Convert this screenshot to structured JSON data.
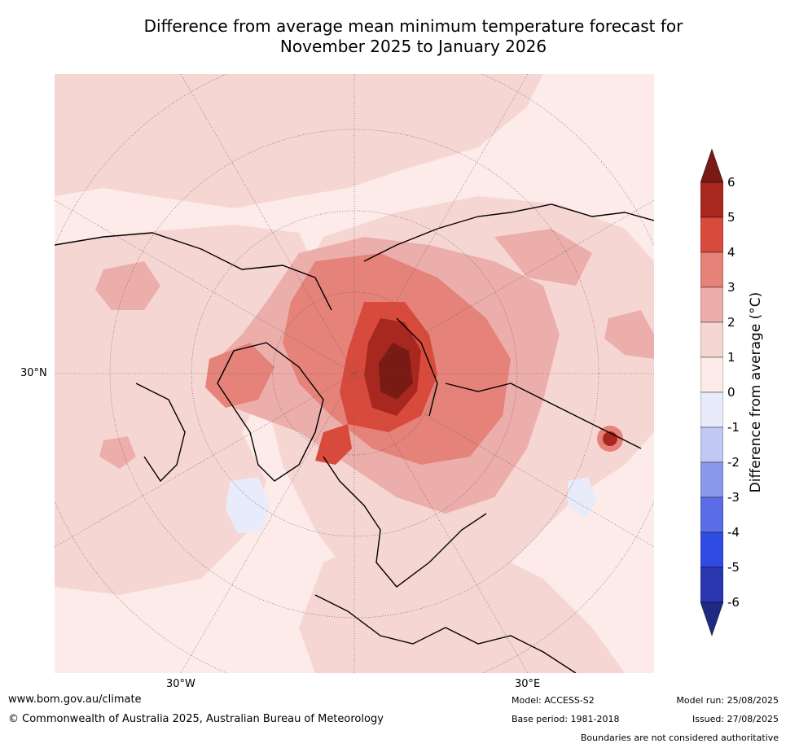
{
  "title_line1": "Difference from average mean minimum temperature forecast for",
  "title_line2": "November 2025 to January 2026",
  "labels": {
    "lat_30n": "30°N",
    "lon_30w": "30°W",
    "lon_30e": "30°E"
  },
  "colorbar": {
    "label": "Difference from average (°C)",
    "ticks": [
      "6",
      "5",
      "4",
      "3",
      "2",
      "1",
      "0",
      "-1",
      "-2",
      "-3",
      "-4",
      "-5",
      "-6"
    ],
    "colors": [
      "#7a1a14",
      "#a8271f",
      "#d84b3c",
      "#e5827a",
      "#ecaeaa",
      "#f6d6d3",
      "#fcebe8",
      "#e8ebfa",
      "#c1c8f2",
      "#8b99ec",
      "#5a6de6",
      "#2f4be2",
      "#2936b0",
      "#1e2a82"
    ]
  },
  "footer": {
    "website": "www.bom.gov.au/climate",
    "copyright": "© Commonwealth of Australia 2025, Australian Bureau of Meteorology",
    "model": "Model: ACCESS-S2",
    "base_period": "Base period: 1981-2018",
    "model_run": "Model run: 25/08/2025",
    "issued": "Issued: 27/08/2025",
    "disclaimer": "Boundaries are not considered authoritative"
  }
}
